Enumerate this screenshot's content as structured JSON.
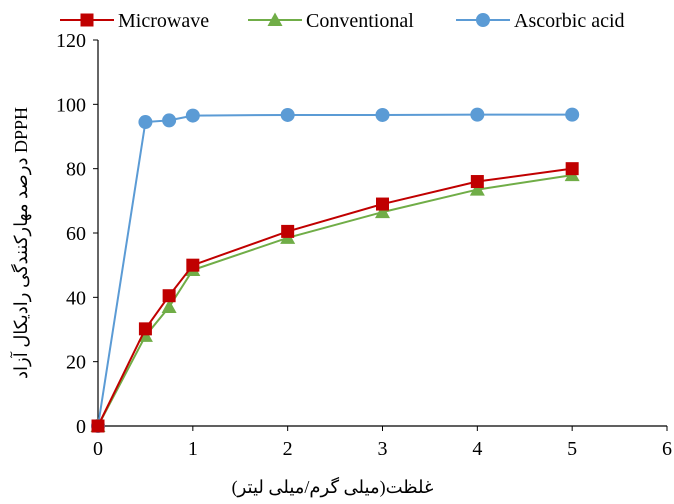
{
  "chart_data": {
    "type": "line",
    "xlabel": "غلظت(میلی گرم/میلی لیتر)",
    "ylabel": "DPPH درصد مهارکنندگی رادیکال آزاد",
    "xlim": [
      0,
      6
    ],
    "ylim": [
      0,
      120
    ],
    "x_ticks": [
      "0",
      "1",
      "2",
      "3",
      "4",
      "5",
      "6"
    ],
    "y_ticks": [
      "0",
      "20",
      "40",
      "60",
      "80",
      "100",
      "120"
    ],
    "grid": false,
    "legend_position": "top",
    "x": [
      0,
      0.5,
      0.75,
      1,
      2,
      3,
      4,
      5
    ],
    "series": [
      {
        "name": "Microwave",
        "color": "#c00000",
        "marker": "square",
        "values": [
          0,
          30.2,
          40.5,
          50,
          60.5,
          69,
          76,
          80
        ]
      },
      {
        "name": "Conventional",
        "color": "#70ad47",
        "marker": "triangle",
        "values": [
          0,
          28,
          37,
          48.5,
          58.5,
          66.5,
          73.5,
          78
        ]
      },
      {
        "name": "Ascorbic acid",
        "color": "#5b9bd5",
        "marker": "circle",
        "values": [
          0,
          94.5,
          95,
          96.5,
          96.7,
          96.7,
          96.8,
          96.8
        ]
      }
    ]
  }
}
